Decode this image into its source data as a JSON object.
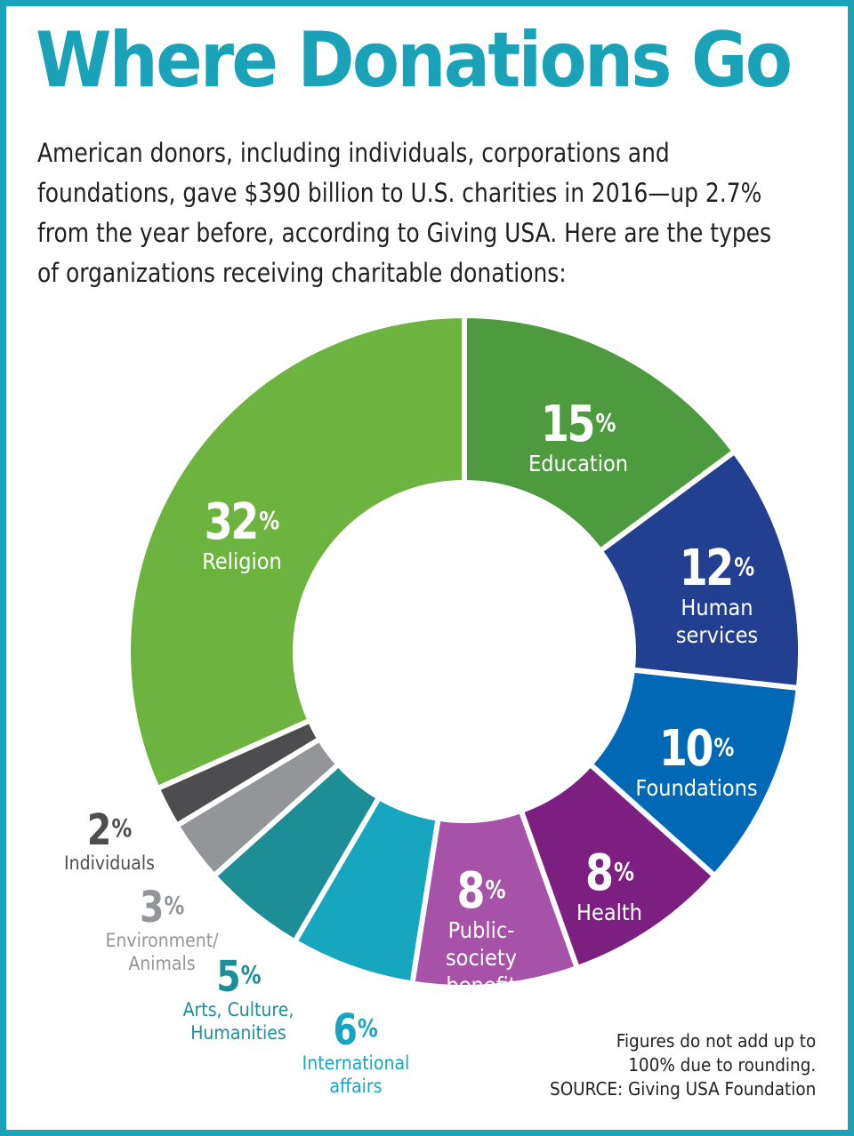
{
  "title": "Where Donations Go",
  "subtitle": "American donors, including individuals, corporations and foundations, gave $390 billion to U.S. charities in 2016—up 2.7% from the year before, according to Giving USA. Here are the types of organizations receiving charitable donations:",
  "footnote": [
    "Figures do not add up to",
    "100% due to rounding.",
    "SOURCE: Giving USA Foundation"
  ],
  "colors": {
    "accent": "#1aa3b8",
    "border": "#1aa3b8"
  },
  "chart_data": {
    "type": "pie",
    "donut": true,
    "title": "Where Donations Go",
    "unit": "%",
    "slices": [
      {
        "label": [
          "Education"
        ],
        "value": 15,
        "color": "#4e9a3e"
      },
      {
        "label": [
          "Human",
          "services"
        ],
        "value": 12,
        "color": "#233f8f"
      },
      {
        "label": [
          "Foundations"
        ],
        "value": 10,
        "color": "#0068b5"
      },
      {
        "label": [
          "Health"
        ],
        "value": 8,
        "color": "#7d1f80"
      },
      {
        "label": [
          "Public-",
          "society",
          "benefit"
        ],
        "value": 8,
        "color": "#a552a8"
      },
      {
        "label": [
          "International",
          "affairs"
        ],
        "value": 6,
        "color": "#16a6bf"
      },
      {
        "label": [
          "Arts, Culture,",
          "Humanities"
        ],
        "value": 5,
        "color": "#1d8e96"
      },
      {
        "label": [
          "Environment/",
          "Animals"
        ],
        "value": 3,
        "color": "#939598"
      },
      {
        "label": [
          "Individuals"
        ],
        "value": 2,
        "color": "#4d4d4f"
      },
      {
        "label": [
          "Religion"
        ],
        "value": 32,
        "color": "#6db33f"
      }
    ]
  }
}
